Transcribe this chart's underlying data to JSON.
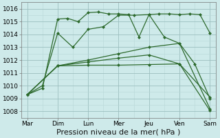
{
  "x_labels": [
    "Mar",
    "Dim",
    "Lun",
    "Mer",
    "Jeu",
    "Ven",
    "Sam"
  ],
  "x_positions": [
    0,
    1,
    2,
    3,
    4,
    5,
    6
  ],
  "series": [
    {
      "name": "line1_zigzag",
      "x": [
        0,
        0.5,
        1,
        1.33,
        1.67,
        2,
        2.33,
        2.67,
        3,
        3.33,
        3.67,
        4,
        4.33,
        4.67,
        5,
        5.33,
        5.67,
        6
      ],
      "y": [
        1009.3,
        1009.8,
        1015.2,
        1015.25,
        1015.0,
        1015.7,
        1015.75,
        1015.6,
        1015.6,
        1015.55,
        1013.8,
        1015.55,
        1015.6,
        1015.6,
        1015.55,
        1015.6,
        1015.55,
        1014.1
      ]
    },
    {
      "name": "line2_arc",
      "x": [
        0,
        0.5,
        1,
        1.5,
        2,
        2.5,
        3,
        3.5,
        4,
        4.5,
        5,
        5.5,
        6
      ],
      "y": [
        1009.3,
        1010.0,
        1014.1,
        1013.0,
        1014.4,
        1014.6,
        1015.5,
        1015.5,
        1015.55,
        1013.8,
        1013.3,
        1011.7,
        1009.0
      ]
    },
    {
      "name": "line3_flat",
      "x": [
        0,
        1,
        2,
        3,
        4,
        5,
        6
      ],
      "y": [
        1009.3,
        1011.55,
        1011.6,
        1011.6,
        1011.65,
        1011.7,
        1009.1
      ]
    },
    {
      "name": "line4_rise",
      "x": [
        0,
        1,
        2,
        3,
        4,
        5,
        6
      ],
      "y": [
        1009.3,
        1011.55,
        1012.0,
        1012.5,
        1013.0,
        1013.3,
        1008.2
      ]
    },
    {
      "name": "line5_rise2",
      "x": [
        0,
        1,
        2,
        3,
        4,
        5,
        6
      ],
      "y": [
        1009.3,
        1011.55,
        1011.85,
        1012.15,
        1012.4,
        1011.7,
        1008.05
      ]
    }
  ],
  "ylim": [
    1007.5,
    1016.5
  ],
  "yticks": [
    1008,
    1009,
    1010,
    1011,
    1012,
    1013,
    1014,
    1015,
    1016
  ],
  "minor_ytick_interval": 0.5,
  "line_color": "#2d6a2d",
  "bg_color": "#ceeaea",
  "grid_major_color": "#9bbebe",
  "grid_minor_color": "#b8d8d8",
  "xlabel": "Pression niveau de la mer( hPa )",
  "xlabel_fontsize": 8,
  "tick_fontsize": 6.5,
  "marker": "D",
  "marker_size": 2.0,
  "linewidth": 0.9
}
